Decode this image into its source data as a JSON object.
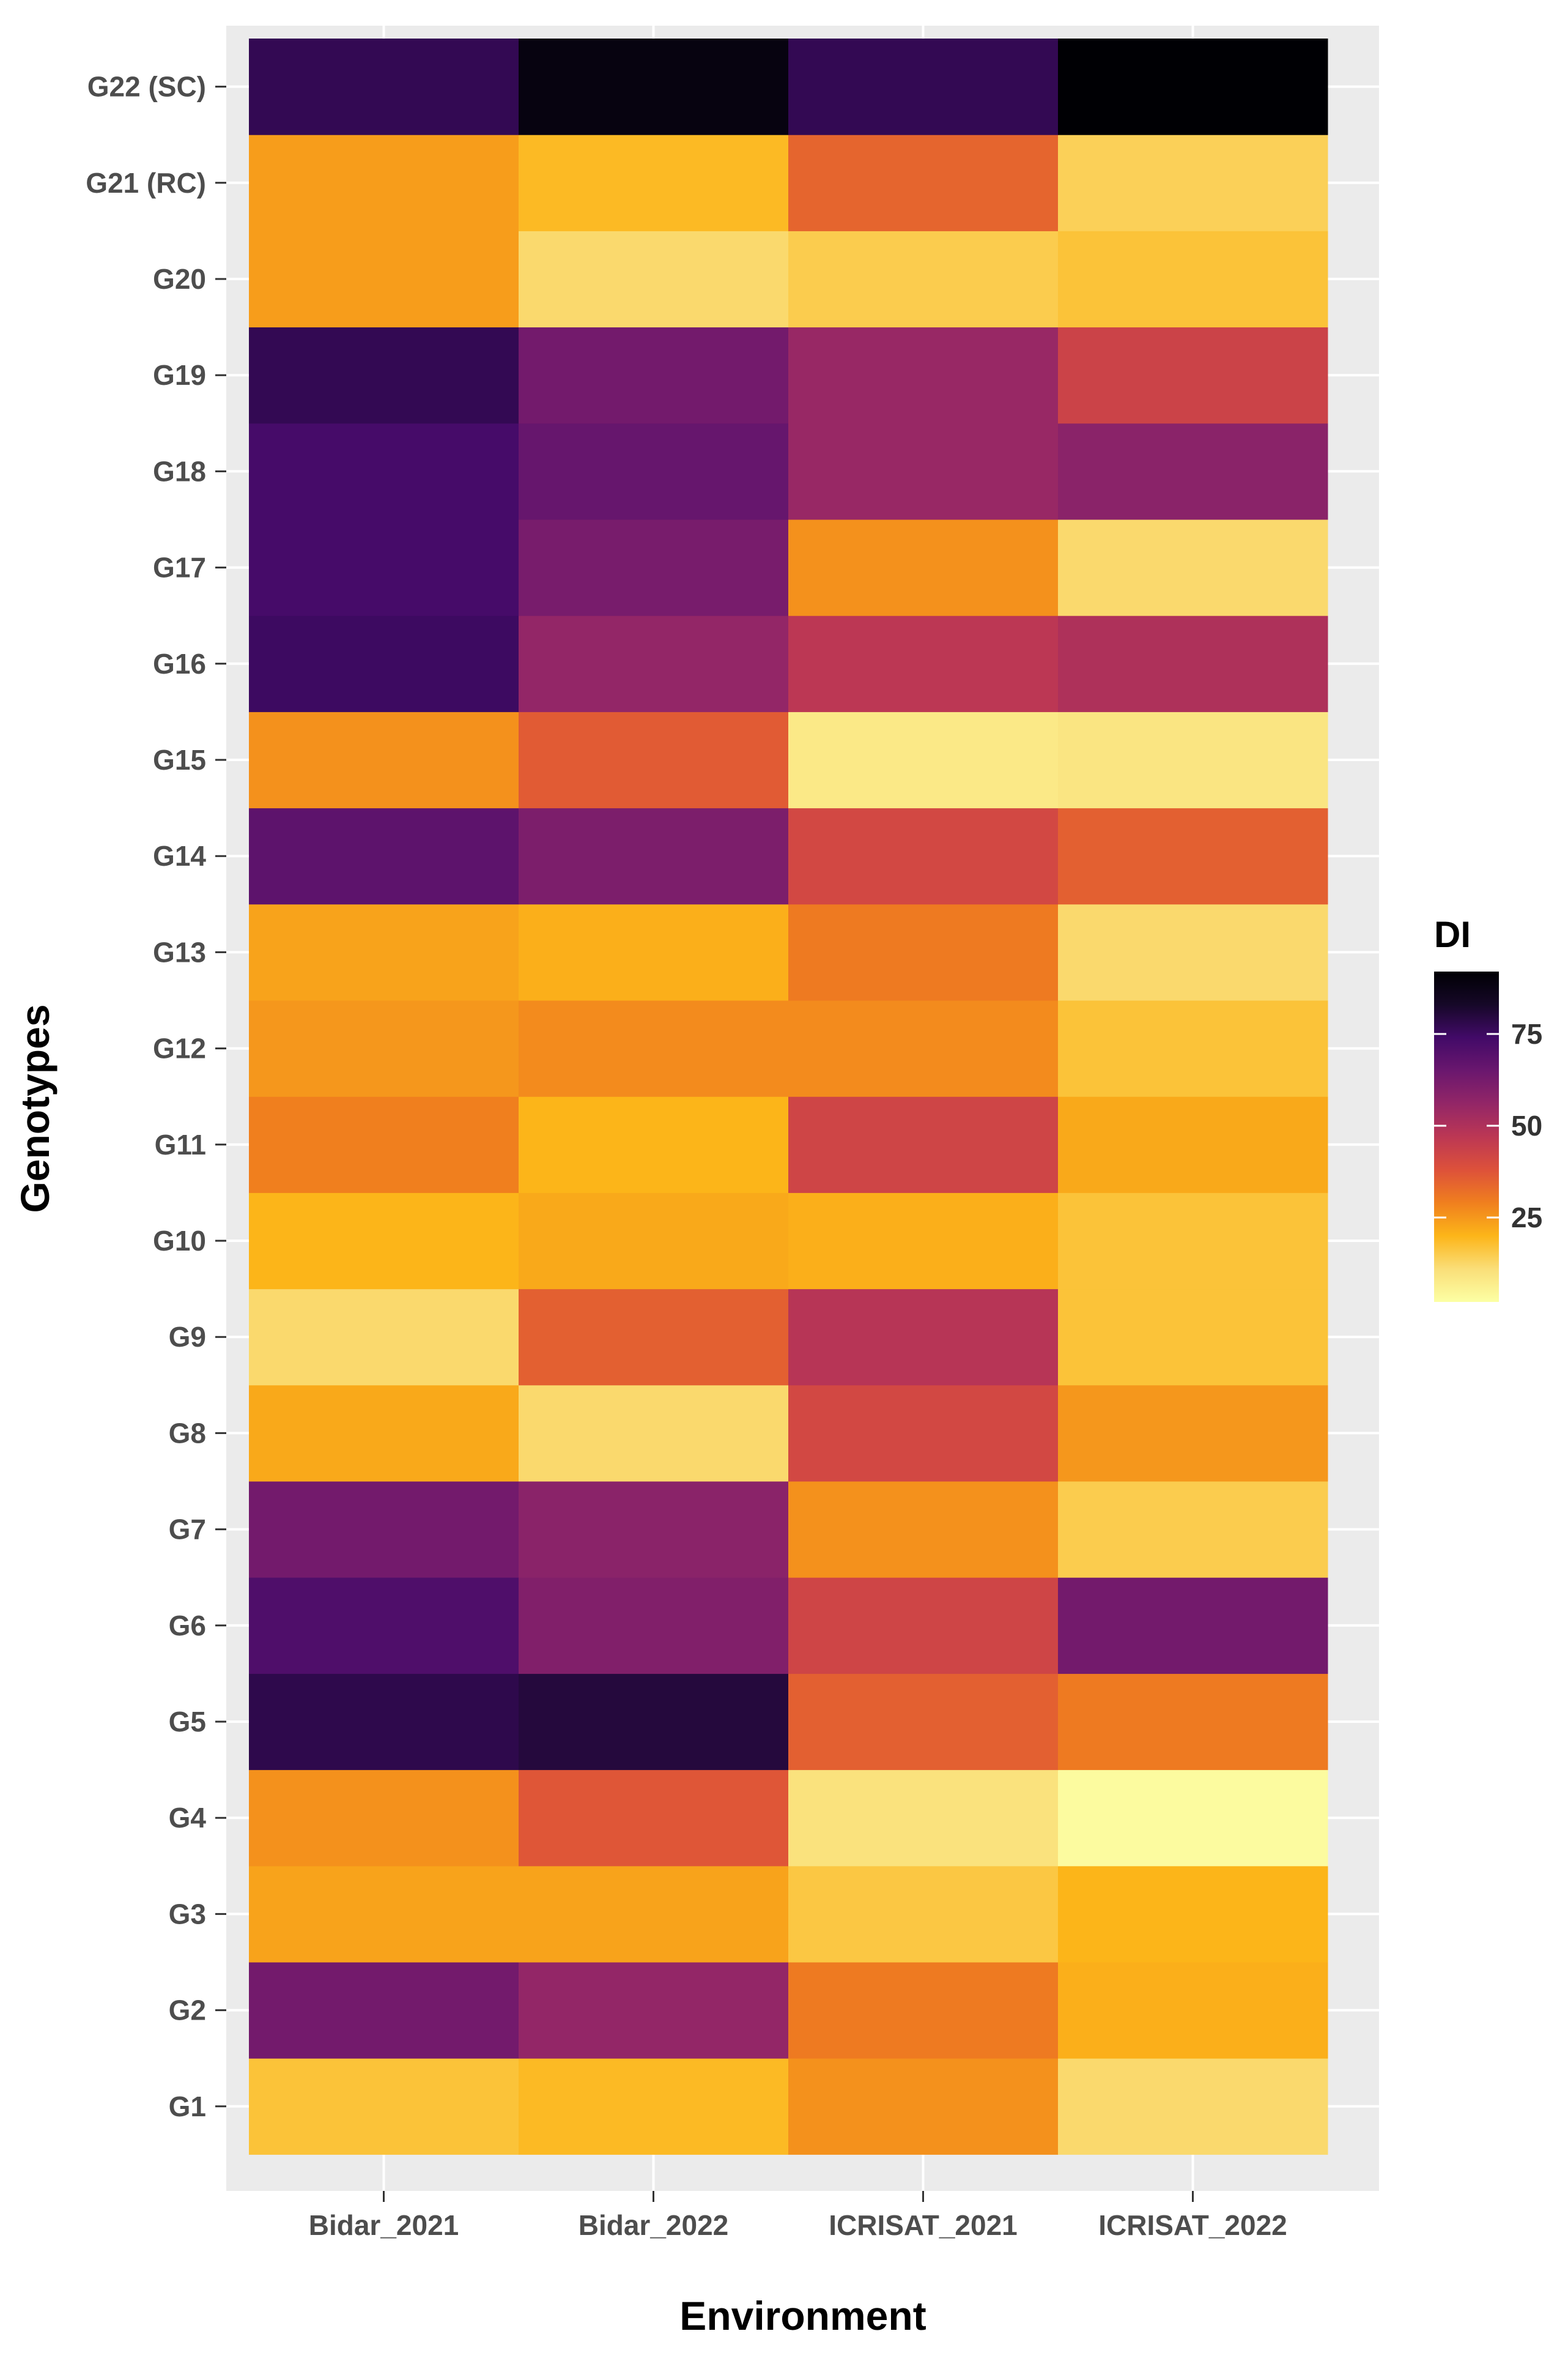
{
  "chart_data": {
    "type": "heatmap",
    "xlabel": "Environment",
    "ylabel": "Genotypes",
    "x_categories": [
      "Bidar_2021",
      "Bidar_2022",
      "ICRISAT_2021",
      "ICRISAT_2022"
    ],
    "y_categories": [
      "G1",
      "G2",
      "G3",
      "G4",
      "G5",
      "G6",
      "G7",
      "G8",
      "G9",
      "G10",
      "G11",
      "G12",
      "G13",
      "G14",
      "G15",
      "G16",
      "G17",
      "G18",
      "G19",
      "G20",
      "G21 (RC)",
      "G22 (SC)"
    ],
    "values": [
      [
        17,
        19,
        26,
        12
      ],
      [
        63,
        56,
        30,
        21
      ],
      [
        23,
        23,
        16,
        20
      ],
      [
        26,
        37,
        10,
        3
      ],
      [
        78,
        80,
        35,
        30
      ],
      [
        71,
        60,
        42,
        63
      ],
      [
        63,
        58,
        26,
        15
      ],
      [
        22,
        12,
        41,
        25
      ],
      [
        12,
        35,
        48,
        17
      ],
      [
        20,
        22,
        21,
        17
      ],
      [
        29,
        20,
        42,
        22
      ],
      [
        25,
        27,
        27,
        17
      ],
      [
        23,
        21,
        30,
        12
      ],
      [
        68,
        61,
        41,
        35
      ],
      [
        26,
        36,
        8,
        9
      ],
      [
        75,
        56,
        47,
        50
      ],
      [
        73,
        62,
        26,
        12
      ],
      [
        73,
        66,
        55,
        58
      ],
      [
        77,
        63,
        55,
        43
      ],
      [
        24,
        12,
        15,
        17
      ],
      [
        24,
        19,
        34,
        14
      ],
      [
        77,
        89,
        77,
        92
      ]
    ],
    "legend": {
      "title": "DI",
      "ticks": [
        25,
        50,
        75
      ],
      "range": [
        2,
        92
      ],
      "colormap": "inferno-reversed"
    },
    "grid": true,
    "legend_placement": "right",
    "panel_background": "#ebebeb"
  }
}
